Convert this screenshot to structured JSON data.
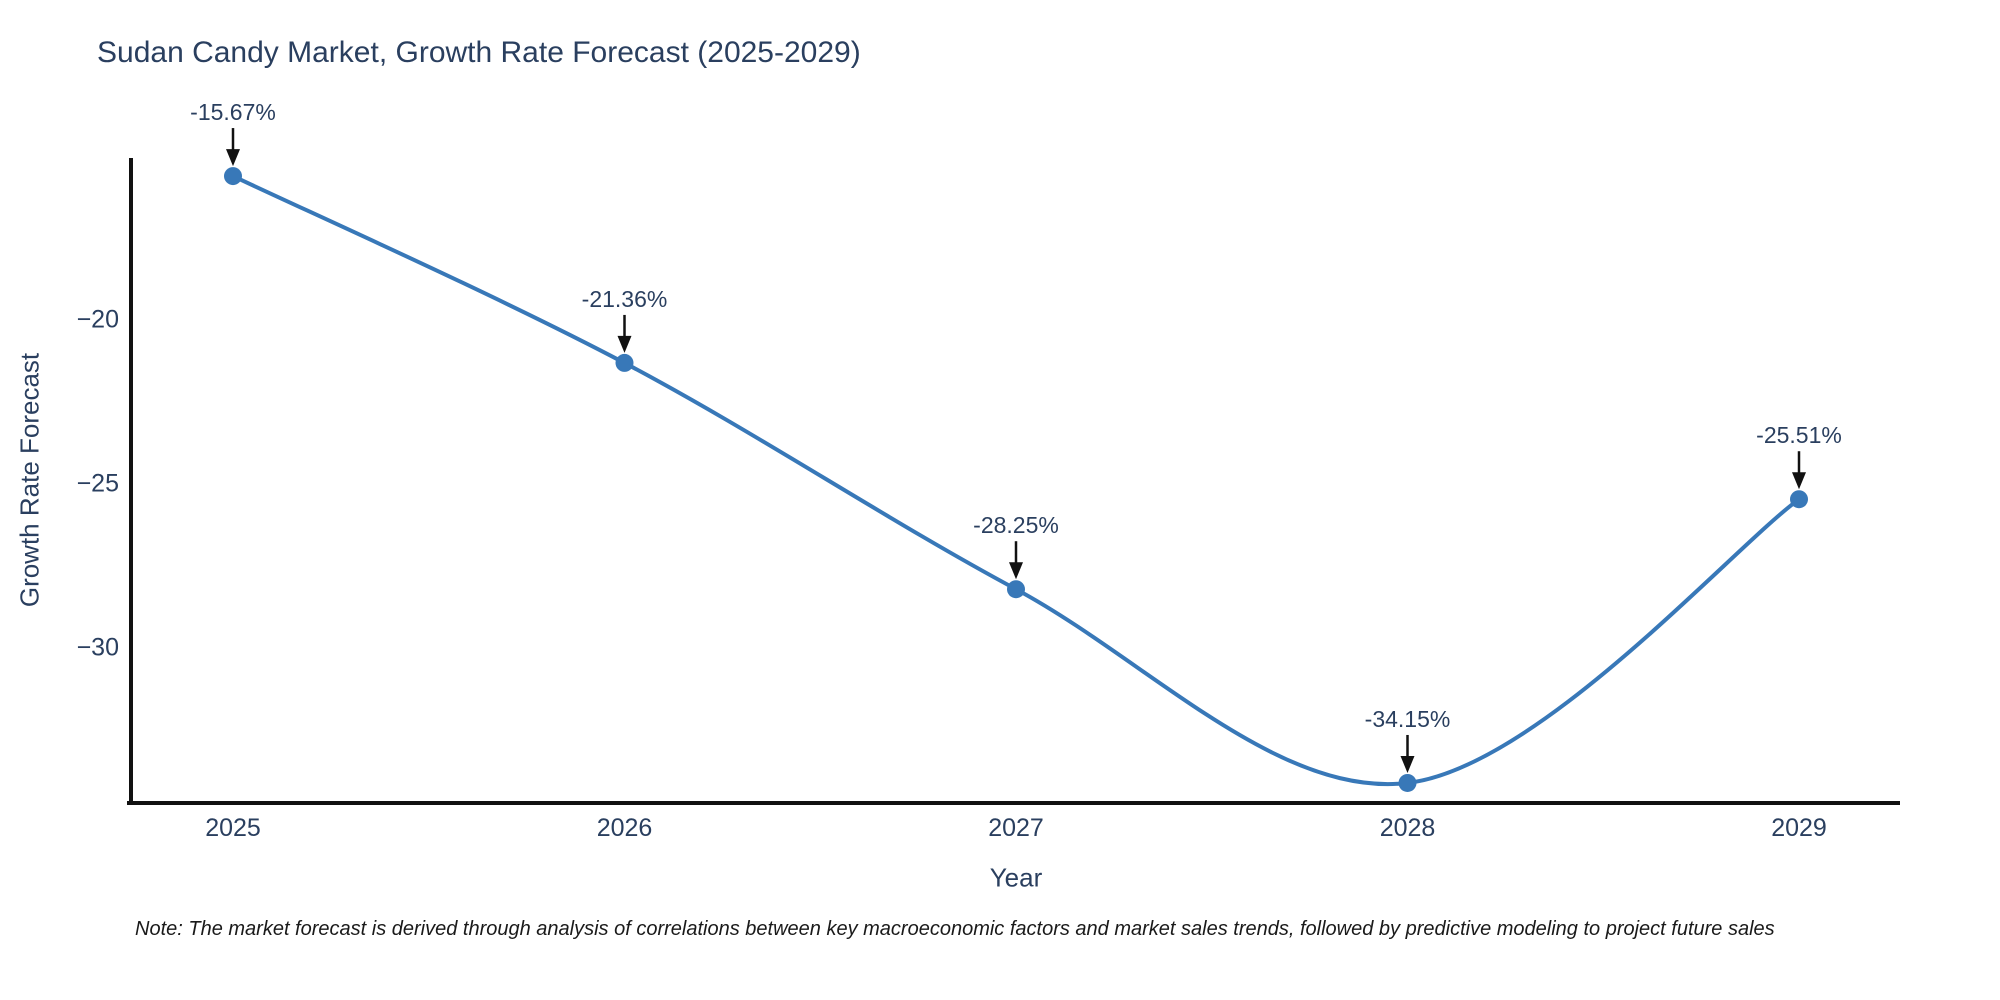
{
  "title": "Sudan Candy Market, Growth Rate Forecast (2025-2029)",
  "note": "Note: The market forecast is derived through analysis of correlations between key macroeconomic factors and market sales trends, followed by predictive modeling to project future sales",
  "chart_data": {
    "type": "line",
    "line_shape": "spline",
    "title": "Sudan Candy Market, Growth Rate Forecast (2025-2029)",
    "xlabel": "Year",
    "ylabel": "Growth Rate Forecast",
    "x": [
      2025,
      2026,
      2027,
      2028,
      2029
    ],
    "values": [
      -15.67,
      -21.36,
      -28.25,
      -34.15,
      -25.51
    ],
    "point_labels": [
      "-15.67%",
      "-21.36%",
      "-28.25%",
      "-34.15%",
      "-25.51%"
    ],
    "x_tick_labels": [
      "2025",
      "2026",
      "2027",
      "2028",
      "2029"
    ],
    "y_ticks": [
      {
        "value": -20,
        "label": "−20"
      },
      {
        "value": -25,
        "label": "−25"
      },
      {
        "value": -30,
        "label": "−30"
      }
    ],
    "ylim": [
      -34.76,
      -15.12
    ],
    "grid": false,
    "legend": "none",
    "colors": {
      "line": "#3878b8",
      "marker": "#3878b8",
      "axis": "#111111",
      "arrow": "#111111",
      "text": "#2a3f5f"
    }
  }
}
